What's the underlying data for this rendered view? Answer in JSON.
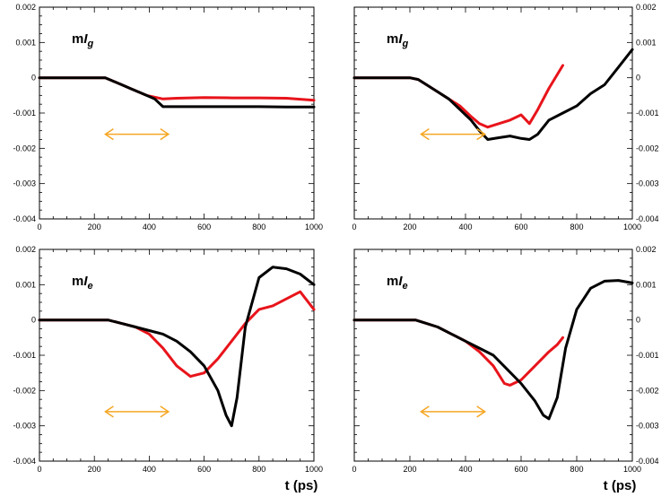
{
  "chart_data": [
    {
      "type": "line",
      "label": {
        "prefix": "m",
        "italic": "I",
        "subscript": "g"
      },
      "xlim": [
        0,
        1000
      ],
      "ylim": [
        -0.004,
        0.002
      ],
      "xticks": [
        0,
        200,
        400,
        600,
        800,
        1000
      ],
      "yticks": [
        -0.004,
        -0.003,
        -0.002,
        -0.001,
        0,
        0.001,
        0.002
      ],
      "yticklabels": [
        "-0.004",
        "-0.003",
        "-0.002",
        "-0.001",
        "0",
        "0.001",
        "0.002"
      ],
      "ytick_side": "left",
      "xlabel": "",
      "arrow": {
        "x": [
          240,
          470
        ],
        "y": -0.0016,
        "color": "#f5a623"
      },
      "series": [
        {
          "name": "black",
          "color": "#000000",
          "x": [
            0,
            240,
            270,
            300,
            330,
            360,
            390,
            420,
            450,
            500,
            600,
            700,
            800,
            900,
            1000
          ],
          "y": [
            0,
            0,
            -0.0001,
            -0.0002,
            -0.0003,
            -0.0004,
            -0.0005,
            -0.0006,
            -0.00082,
            -0.00082,
            -0.00082,
            -0.00082,
            -0.00082,
            -0.00083,
            -0.00083
          ]
        },
        {
          "name": "red",
          "color": "#e8141b",
          "x": [
            0,
            240,
            270,
            300,
            330,
            360,
            390,
            420,
            450,
            500,
            600,
            700,
            800,
            900,
            1000
          ],
          "y": [
            0,
            0,
            -0.0001,
            -0.0002,
            -0.0003,
            -0.0004,
            -0.0005,
            -0.00055,
            -0.0006,
            -0.00058,
            -0.00056,
            -0.00057,
            -0.00057,
            -0.00058,
            -0.00064
          ]
        }
      ]
    },
    {
      "type": "line",
      "label": {
        "prefix": "m",
        "italic": "I",
        "subscript": "g"
      },
      "xlim": [
        0,
        1000
      ],
      "ylim": [
        -0.004,
        0.002
      ],
      "xticks": [
        0,
        200,
        400,
        600,
        800,
        1000
      ],
      "yticks": [
        -0.004,
        -0.003,
        -0.002,
        -0.001,
        0,
        0.001,
        0.002
      ],
      "yticklabels": [
        "-0.004",
        "-0.003",
        "-0.002",
        "-0.001",
        "0",
        "0.001",
        "0.002"
      ],
      "ytick_side": "right",
      "xlabel": "",
      "arrow": {
        "x": [
          240,
          470
        ],
        "y": -0.0016,
        "color": "#f5a623"
      },
      "series": [
        {
          "name": "black",
          "color": "#000000",
          "x": [
            0,
            200,
            230,
            260,
            300,
            340,
            380,
            420,
            450,
            480,
            520,
            560,
            600,
            630,
            660,
            700,
            750,
            800,
            850,
            900,
            950,
            1000
          ],
          "y": [
            0,
            0,
            -5e-05,
            -0.0002,
            -0.0004,
            -0.0006,
            -0.0009,
            -0.0012,
            -0.0015,
            -0.00175,
            -0.0017,
            -0.00165,
            -0.00172,
            -0.00175,
            -0.0016,
            -0.0012,
            -0.001,
            -0.0008,
            -0.00045,
            -0.0002,
            0.0003,
            0.0008
          ]
        },
        {
          "name": "red",
          "color": "#e8141b",
          "x": [
            0,
            200,
            230,
            260,
            300,
            340,
            380,
            420,
            450,
            480,
            520,
            560,
            600,
            630,
            660,
            700,
            750
          ],
          "y": [
            0,
            0,
            -5e-05,
            -0.0002,
            -0.0004,
            -0.0006,
            -0.0008,
            -0.0011,
            -0.0013,
            -0.0014,
            -0.0013,
            -0.0012,
            -0.00105,
            -0.0013,
            -0.0009,
            -0.0003,
            0.00035
          ]
        }
      ]
    },
    {
      "type": "line",
      "label": {
        "prefix": "m",
        "italic": "I",
        "subscript": "e"
      },
      "xlim": [
        0,
        1000
      ],
      "ylim": [
        -0.004,
        0.002
      ],
      "xticks": [
        0,
        200,
        400,
        600,
        800,
        1000
      ],
      "yticks": [
        -0.004,
        -0.003,
        -0.002,
        -0.001,
        0,
        0.001,
        0.002
      ],
      "yticklabels": [
        "-0.004",
        "-0.003",
        "-0.002",
        "-0.001",
        "0",
        "0.001",
        "0.002"
      ],
      "ytick_side": "left",
      "xlabel": "t (ps)",
      "arrow": {
        "x": [
          240,
          470
        ],
        "y": -0.0026,
        "color": "#f5a623"
      },
      "series": [
        {
          "name": "black",
          "color": "#000000",
          "x": [
            0,
            250,
            300,
            350,
            400,
            450,
            500,
            550,
            600,
            650,
            680,
            700,
            720,
            750,
            800,
            850,
            900,
            950,
            1000
          ],
          "y": [
            0,
            0,
            -0.0001,
            -0.0002,
            -0.0003,
            -0.0004,
            -0.0006,
            -0.0009,
            -0.0013,
            -0.002,
            -0.0027,
            -0.003,
            -0.0022,
            -0.0002,
            0.0012,
            0.0015,
            0.00145,
            0.0013,
            0.001
          ]
        },
        {
          "name": "red",
          "color": "#e8141b",
          "x": [
            0,
            250,
            300,
            350,
            400,
            450,
            500,
            550,
            600,
            650,
            700,
            750,
            800,
            850,
            900,
            950,
            1000
          ],
          "y": [
            0,
            0,
            -0.0001,
            -0.0002,
            -0.0004,
            -0.0008,
            -0.0013,
            -0.0016,
            -0.0015,
            -0.0011,
            -0.0006,
            -0.0001,
            0.0003,
            0.0004,
            0.0006,
            0.0008,
            0.0003
          ]
        }
      ]
    },
    {
      "type": "line",
      "label": {
        "prefix": "m",
        "italic": "I",
        "subscript": "e"
      },
      "xlim": [
        0,
        1000
      ],
      "ylim": [
        -0.004,
        0.002
      ],
      "xticks": [
        0,
        200,
        400,
        600,
        800,
        1000
      ],
      "yticks": [
        -0.004,
        -0.003,
        -0.002,
        -0.001,
        0,
        0.001,
        0.002
      ],
      "yticklabels": [
        "-0.004",
        "-0.003",
        "-0.002",
        "-0.001",
        "0",
        "0.001",
        "0.002"
      ],
      "ytick_side": "right",
      "xlabel": "t (ps)",
      "arrow": {
        "x": [
          240,
          470
        ],
        "y": -0.0026,
        "color": "#f5a623"
      },
      "series": [
        {
          "name": "black",
          "color": "#000000",
          "x": [
            0,
            220,
            260,
            300,
            350,
            400,
            450,
            500,
            550,
            600,
            650,
            680,
            700,
            730,
            760,
            800,
            850,
            900,
            950,
            1000
          ],
          "y": [
            0,
            0,
            -0.0001,
            -0.0002,
            -0.0004,
            -0.0006,
            -0.0008,
            -0.001,
            -0.0014,
            -0.0018,
            -0.0023,
            -0.0027,
            -0.0028,
            -0.0022,
            -0.0008,
            0.0003,
            0.0009,
            0.0011,
            0.00112,
            0.00105
          ]
        },
        {
          "name": "red",
          "color": "#e8141b",
          "x": [
            0,
            220,
            260,
            300,
            350,
            400,
            450,
            500,
            540,
            560,
            600,
            650,
            700,
            730,
            750
          ],
          "y": [
            0,
            0,
            -0.0001,
            -0.0002,
            -0.0004,
            -0.0006,
            -0.0009,
            -0.0013,
            -0.0018,
            -0.00185,
            -0.0017,
            -0.0013,
            -0.0009,
            -0.0007,
            -0.0005
          ]
        }
      ]
    }
  ]
}
